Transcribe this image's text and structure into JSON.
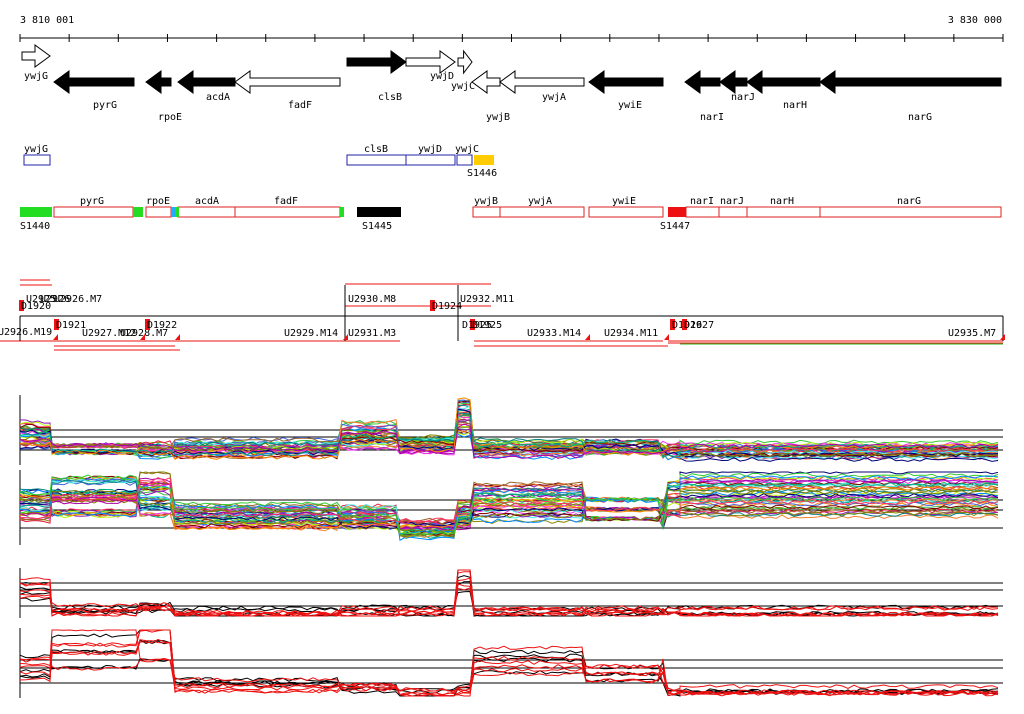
{
  "coords": {
    "start_label": "3 810 001",
    "end_label": "3 830 000"
  },
  "genes_top": [
    {
      "name": "ywjG",
      "label": "ywjG",
      "filled": false,
      "dir": "right"
    },
    {
      "name": "pyrG",
      "label": "pyrG",
      "filled": true,
      "dir": "left"
    },
    {
      "name": "rpoE",
      "label": "rpoE",
      "filled": true,
      "dir": "left"
    },
    {
      "name": "acdA",
      "label": "acdA",
      "filled": true,
      "dir": "left"
    },
    {
      "name": "fadF",
      "label": "fadF",
      "filled": false,
      "dir": "left"
    },
    {
      "name": "clsB",
      "label": "clsB",
      "filled": true,
      "dir": "right"
    },
    {
      "name": "ywjD",
      "label": "ywjD",
      "filled": false,
      "dir": "right"
    },
    {
      "name": "ywjC",
      "label": "ywjC",
      "filled": false,
      "dir": "right"
    },
    {
      "name": "ywjB",
      "label": "ywjB",
      "filled": false,
      "dir": "left"
    },
    {
      "name": "ywjA",
      "label": "ywjA",
      "filled": false,
      "dir": "left"
    },
    {
      "name": "ywiE",
      "label": "ywiE",
      "filled": true,
      "dir": "left"
    },
    {
      "name": "narI",
      "label": "narI",
      "filled": true,
      "dir": "left"
    },
    {
      "name": "narJ",
      "label": "narJ",
      "filled": true,
      "dir": "left"
    },
    {
      "name": "narH",
      "label": "narH",
      "filled": true,
      "dir": "left"
    },
    {
      "name": "narG",
      "label": "narG",
      "filled": true,
      "dir": "left"
    }
  ],
  "operons_blue": [
    {
      "label": "ywjG"
    },
    {
      "label": "clsB"
    },
    {
      "label": "ywjD"
    },
    {
      "label": "ywjC"
    }
  ],
  "operons_red": [
    {
      "label": "pyrG"
    },
    {
      "label": "rpoE"
    },
    {
      "label": "acdA"
    },
    {
      "label": "fadF"
    },
    {
      "label": "ywjB"
    },
    {
      "label": "ywjA"
    },
    {
      "label": "ywiE"
    },
    {
      "label": "narI"
    },
    {
      "label": "narJ"
    },
    {
      "label": "narH"
    },
    {
      "label": "narG"
    }
  ],
  "segments": [
    {
      "label": "S1440",
      "color": "#22dd22"
    },
    {
      "label": "S1445",
      "color": "#000000"
    },
    {
      "label": "S1446",
      "color": "#ffcc00"
    },
    {
      "label": "S1447",
      "color": "#ee1111"
    }
  ],
  "transcripts": [
    "U2926.M19",
    "U2927.M12",
    "U2928.M7",
    "U2929.M14",
    "U2930.M8",
    "U2931.M3",
    "U2932.M11",
    "U2933.M14",
    "U2934.M11",
    "U2935.M7"
  ],
  "transcripts_overlap_labels": [
    "U2925",
    "U2926",
    "U2926.M7"
  ],
  "downstream_marks": [
    "D1920",
    "D1921",
    "D1922",
    "D1924",
    "D1925",
    "D1926",
    "D1927"
  ],
  "downstream_overlap_labels": [
    "D1925"
  ],
  "colors": {
    "gene": "#000000",
    "operon_blue": "#2222aa",
    "operon_red": "#dd2222",
    "accent_red": "#ee1111"
  }
}
